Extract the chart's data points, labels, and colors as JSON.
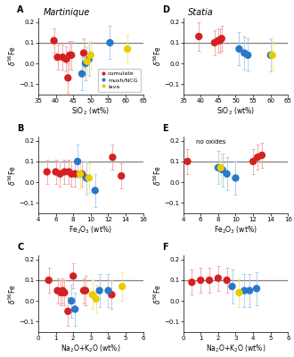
{
  "title_left": "Martinique",
  "title_right": "Statia",
  "ref_line": 0.1,
  "colors": {
    "cumulate": "#d42020",
    "mush": "#2878c8",
    "lava": "#e8cc00"
  },
  "err_colors": {
    "cumulate": "#f0a0a0",
    "mush": "#a0c8f0",
    "lava": "#f0e880"
  },
  "martinique": {
    "A_SiO2": {
      "cumulate": {
        "x": [
          39.5,
          40.5,
          42.0,
          43.0,
          43.5,
          44.0,
          44.5,
          48.0
        ],
        "y": [
          0.11,
          0.03,
          0.03,
          0.02,
          -0.07,
          0.04,
          0.04,
          0.05
        ],
        "yerr": [
          0.06,
          0.06,
          0.06,
          0.06,
          0.07,
          0.07,
          0.07,
          0.07
        ]
      },
      "mush": {
        "x": [
          47.5,
          48.5,
          49.5,
          55.5
        ],
        "y": [
          -0.05,
          0.0,
          0.02,
          0.1
        ],
        "yerr": [
          0.08,
          0.08,
          0.08,
          0.08
        ]
      },
      "lava": {
        "x": [
          49.0,
          50.0,
          60.5
        ],
        "y": [
          0.01,
          0.04,
          0.07
        ],
        "yerr": [
          0.07,
          0.07,
          0.07
        ]
      }
    },
    "B_Fe2O3": {
      "cumulate": {
        "x": [
          5.0,
          6.0,
          6.5,
          7.0,
          7.5,
          7.8,
          8.2,
          9.0,
          12.5,
          13.5
        ],
        "y": [
          0.05,
          0.05,
          0.04,
          0.05,
          0.05,
          0.04,
          0.04,
          0.04,
          0.12,
          0.03
        ],
        "yerr": [
          0.06,
          0.06,
          0.06,
          0.06,
          0.06,
          0.06,
          0.06,
          0.06,
          0.06,
          0.06
        ]
      },
      "mush": {
        "x": [
          8.5,
          9.5,
          10.5
        ],
        "y": [
          0.1,
          0.02,
          -0.04
        ],
        "yerr": [
          0.08,
          0.08,
          0.08
        ]
      },
      "lava": {
        "x": [
          8.8,
          9.8
        ],
        "y": [
          0.04,
          0.02
        ],
        "yerr": [
          0.07,
          0.07
        ]
      }
    },
    "C_Na2OK2O": {
      "cumulate": {
        "x": [
          0.6,
          1.1,
          1.3,
          1.4,
          1.5,
          1.7,
          2.0,
          2.6,
          2.7,
          4.2
        ],
        "y": [
          0.1,
          0.05,
          0.04,
          0.05,
          0.04,
          -0.05,
          0.12,
          0.05,
          0.05,
          0.03
        ],
        "yerr": [
          0.06,
          0.06,
          0.06,
          0.06,
          0.06,
          0.07,
          0.06,
          0.06,
          0.07,
          0.07
        ]
      },
      "mush": {
        "x": [
          1.9,
          2.1,
          3.5,
          4.0
        ],
        "y": [
          0.0,
          -0.04,
          0.05,
          0.05
        ],
        "yerr": [
          0.08,
          0.08,
          0.08,
          0.08
        ]
      },
      "lava": {
        "x": [
          3.1,
          3.3,
          4.8
        ],
        "y": [
          0.03,
          0.01,
          0.07
        ],
        "yerr": [
          0.07,
          0.07,
          0.07
        ]
      }
    }
  },
  "statia": {
    "D_SiO2": {
      "cumulate": {
        "x": [
          39.5,
          44.0,
          45.0,
          45.5,
          46.0
        ],
        "y": [
          0.13,
          0.1,
          0.11,
          0.11,
          0.12
        ],
        "yerr": [
          0.07,
          0.06,
          0.06,
          0.06,
          0.06
        ]
      },
      "mush": {
        "x": [
          51.0,
          52.5,
          53.5,
          60.0
        ],
        "y": [
          0.07,
          0.05,
          0.04,
          0.04
        ],
        "yerr": [
          0.08,
          0.08,
          0.08,
          0.08
        ]
      },
      "lava": {
        "x": [
          60.5
        ],
        "y": [
          0.04
        ],
        "yerr": [
          0.07
        ]
      }
    },
    "E_Fe2O3": {
      "cumulate": {
        "x": [
          4.5,
          12.0,
          12.5,
          13.0
        ],
        "y": [
          0.1,
          0.1,
          0.12,
          0.13
        ],
        "yerr": [
          0.06,
          0.06,
          0.06,
          0.06
        ]
      },
      "mush": {
        "x": [
          8.0,
          8.5,
          9.0,
          10.0
        ],
        "y": [
          0.07,
          0.06,
          0.04,
          0.02
        ],
        "yerr": [
          0.08,
          0.08,
          0.08,
          0.08
        ]
      },
      "lava": {
        "x": [
          8.3
        ],
        "y": [
          0.07
        ],
        "yerr": [
          0.07
        ]
      },
      "annotation": "no oxides"
    },
    "F_Na2OK2O": {
      "cumulate": {
        "x": [
          0.5,
          1.0,
          1.5,
          2.0,
          2.5
        ],
        "y": [
          0.09,
          0.1,
          0.1,
          0.11,
          0.1
        ],
        "yerr": [
          0.06,
          0.06,
          0.06,
          0.06,
          0.06
        ]
      },
      "mush": {
        "x": [
          2.8,
          3.5,
          3.8,
          4.2
        ],
        "y": [
          0.07,
          0.05,
          0.05,
          0.06
        ],
        "yerr": [
          0.08,
          0.08,
          0.08,
          0.08
        ]
      },
      "lava": {
        "x": [
          3.2
        ],
        "y": [
          0.04
        ],
        "yerr": [
          0.07
        ]
      }
    }
  },
  "xlims": {
    "SiO2": [
      35,
      65
    ],
    "Fe2O3": [
      4,
      16
    ],
    "Na2OK2O": [
      0,
      6
    ]
  },
  "ylim": [
    -0.15,
    0.22
  ],
  "yticks": [
    -0.1,
    0.0,
    0.1,
    0.2
  ],
  "xticks": {
    "SiO2": [
      35,
      40,
      45,
      50,
      55,
      60,
      65
    ],
    "Fe2O3": [
      4,
      6,
      8,
      10,
      12,
      14,
      16
    ],
    "Na2OK2O": [
      0,
      1,
      2,
      3,
      4,
      5,
      6
    ]
  },
  "xlabels": {
    "SiO2": "SiO$_2$ (wt%)",
    "Fe2O3": "Fe$_2$O$_3$ (wt%)",
    "Na2OK2O": "Na$_2$O+K$_2$O (wt%)"
  }
}
